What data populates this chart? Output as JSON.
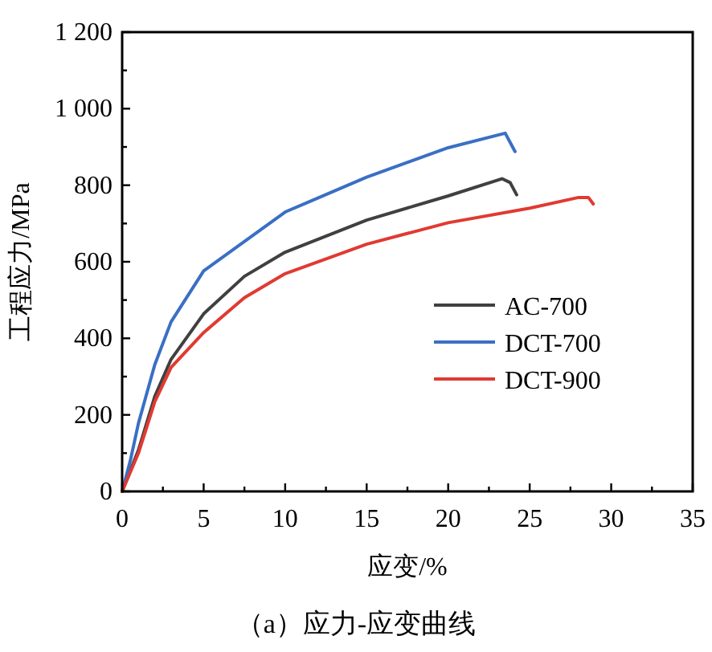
{
  "chart_data": {
    "type": "line",
    "title": "（a）应力-应变曲线",
    "xlabel": "应变/%",
    "ylabel": "工程应力/MPa",
    "xlim": [
      0,
      35
    ],
    "ylim": [
      0,
      1200
    ],
    "xticks": [
      0,
      {
        "value": 2.5,
        "label": null
      },
      5,
      {
        "value": 7.5,
        "label": null
      },
      10,
      {
        "value": 12.5,
        "label": null
      },
      15,
      {
        "value": 17.5,
        "label": null
      },
      20,
      {
        "value": 22.5,
        "label": null
      },
      25,
      {
        "value": 27.5,
        "label": null
      },
      30,
      {
        "value": 32.5,
        "label": null
      },
      35
    ],
    "yticks": [
      0,
      {
        "value": 100,
        "label": null
      },
      200,
      {
        "value": 300,
        "label": null
      },
      400,
      {
        "value": 500,
        "label": null
      },
      600,
      {
        "value": 700,
        "label": null
      },
      800,
      {
        "value": 900,
        "label": null
      },
      {
        "value": 1000,
        "label": "1 000"
      },
      {
        "value": 1100,
        "label": null
      },
      {
        "value": 1200,
        "label": "1 200"
      }
    ],
    "legend": "right",
    "grid": false,
    "marker": "none",
    "line_style": "solid",
    "series": [
      {
        "name": "AC-700",
        "color": "#404040",
        "x": [
          0,
          1,
          2,
          3,
          5,
          7.5,
          10,
          15,
          20,
          23.3,
          23.8,
          24.2
        ],
        "values": [
          0,
          108,
          248,
          345,
          464,
          562,
          625,
          709,
          772,
          817,
          807,
          775
        ]
      },
      {
        "name": "DCT-700",
        "color": "#3a6fc4",
        "x": [
          0,
          0.5,
          1,
          2,
          3,
          5,
          10,
          15,
          20,
          23.5,
          24.1
        ],
        "values": [
          0,
          80,
          178,
          331,
          443,
          576,
          730,
          821,
          898,
          936,
          888
        ]
      },
      {
        "name": "DCT-900",
        "color": "#e03a32",
        "x": [
          0,
          1,
          2,
          3,
          5,
          7.5,
          10,
          15,
          20,
          25,
          28,
          28.6,
          28.9
        ],
        "values": [
          0,
          100,
          234,
          324,
          415,
          506,
          569,
          646,
          702,
          740,
          768,
          768,
          751
        ]
      }
    ]
  }
}
